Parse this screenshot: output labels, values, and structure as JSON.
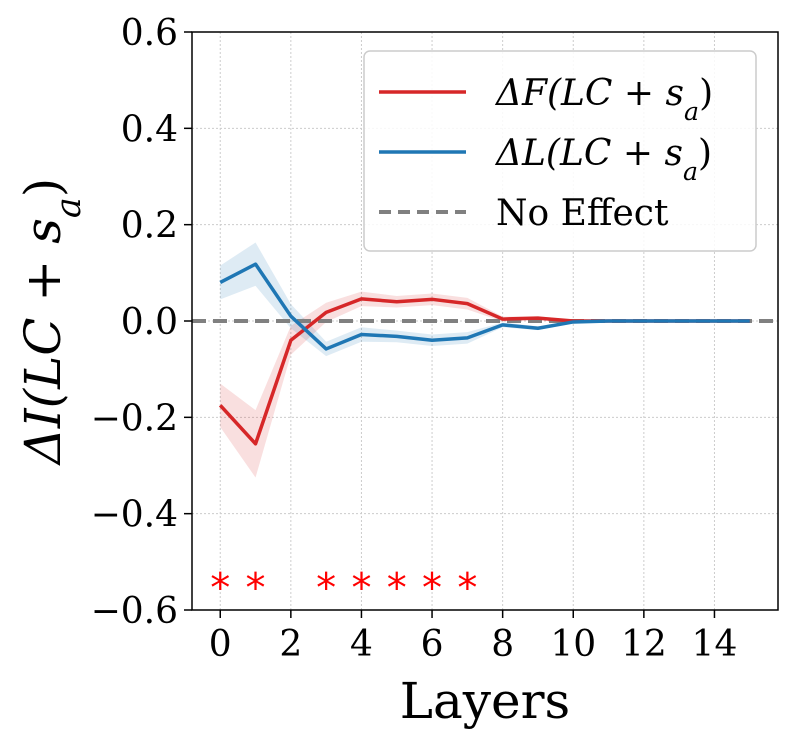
{
  "chart_data": {
    "type": "line",
    "xlabel": "Layers",
    "ylabel": "ΔI(LC + s_a)",
    "xlim": [
      -0.8,
      15.8
    ],
    "ylim": [
      -0.6,
      0.6
    ],
    "xticks": [
      0,
      2,
      4,
      6,
      8,
      10,
      12,
      14
    ],
    "yticks": [
      -0.6,
      -0.4,
      -0.2,
      0.0,
      0.2,
      0.4,
      0.6
    ],
    "ytick_labels": [
      "−0.6",
      "−0.4",
      "−0.2",
      "0.0",
      "0.2",
      "0.4",
      "0.6"
    ],
    "grid": true,
    "legend_position": "top-right",
    "x": [
      0,
      1,
      2,
      3,
      4,
      5,
      6,
      7,
      8,
      9,
      10,
      11,
      12,
      13,
      14,
      15
    ],
    "series": [
      {
        "name": "ΔF(LC + s_a)",
        "color": "#d62728",
        "values": [
          -0.175,
          -0.255,
          -0.04,
          0.018,
          0.046,
          0.04,
          0.045,
          0.036,
          0.004,
          0.006,
          0.0,
          0.0,
          0.0,
          0.0,
          0.0,
          0.0
        ],
        "band": [
          0.045,
          0.07,
          0.03,
          0.02,
          0.015,
          0.012,
          0.012,
          0.012,
          0.005,
          0.004,
          0.002,
          0.001,
          0.001,
          0.001,
          0.001,
          0.001
        ]
      },
      {
        "name": "ΔL(LC + s_a)",
        "color": "#1f77b4",
        "values": [
          0.08,
          0.118,
          0.01,
          -0.058,
          -0.028,
          -0.032,
          -0.04,
          -0.035,
          -0.008,
          -0.015,
          -0.002,
          0.0,
          0.0,
          0.0,
          0.0,
          0.0
        ],
        "band": [
          0.035,
          0.045,
          0.025,
          0.015,
          0.015,
          0.012,
          0.012,
          0.012,
          0.005,
          0.004,
          0.002,
          0.001,
          0.001,
          0.001,
          0.001,
          0.001
        ]
      }
    ],
    "reference_line": {
      "name": "No Effect",
      "y": 0.0,
      "color": "#808080",
      "style": "dashed"
    },
    "significance": {
      "symbol": "*",
      "color": "#ff0000",
      "y": -0.545,
      "layers": [
        0,
        1,
        3,
        4,
        5,
        6,
        7
      ]
    }
  }
}
